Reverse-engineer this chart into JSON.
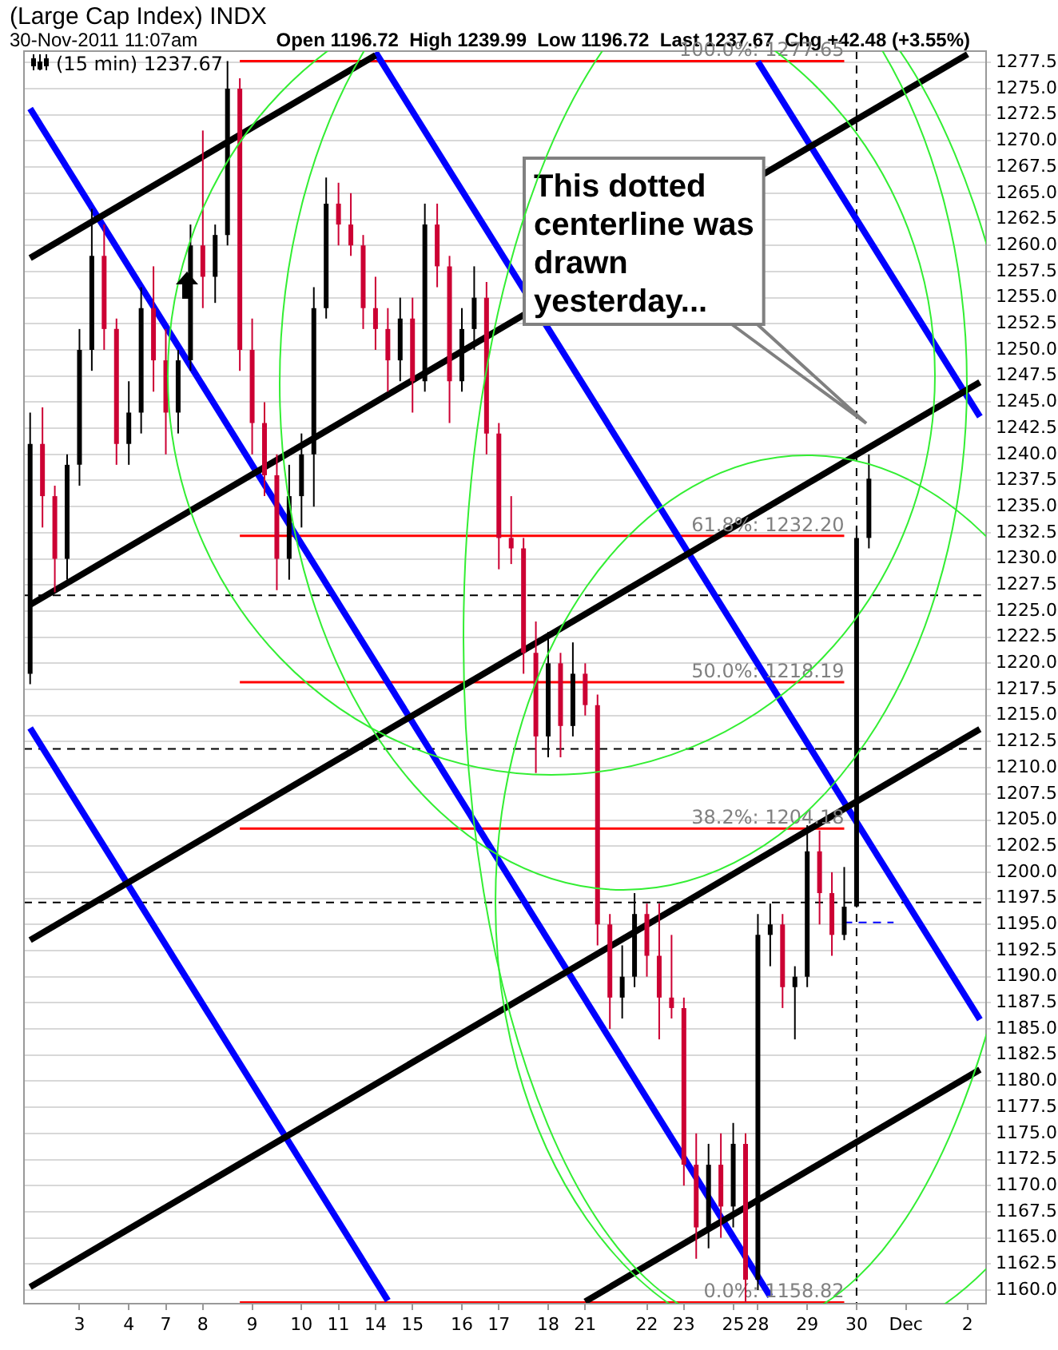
{
  "chart_data": {
    "type": "candlestick",
    "title": "(Large Cap Index) INDX",
    "subtitle": "30-Nov-2011 11:07am",
    "annotations": [
      "Open 1196.72  High 1239.99  Low 1196.72  Last 1237.67  Chg +42.48 (+3.55%)",
      {
        "text": "100.0%: 1277.65",
        "y": 1277.65
      },
      {
        "text": "61.8%: 1232.20",
        "y": 1232.2
      },
      {
        "text": "50.0%: 1218.19",
        "y": 1218.19
      },
      {
        "text": "38.2%: 1204.18",
        "y": 1204.18
      },
      {
        "text": "0.0%: 1158.82",
        "y": 1158.82
      },
      "This dotted centerline was drawn yesterday..."
    ],
    "categories": [
      null,
      null,
      null,
      null,
      "3",
      null,
      null,
      null,
      "4",
      null,
      null,
      "7",
      null,
      null,
      "8",
      null,
      null,
      null,
      "9",
      null,
      null,
      null,
      "10",
      null,
      null,
      "11",
      null,
      null,
      "14",
      null,
      null,
      "15",
      null,
      null,
      null,
      "16",
      null,
      null,
      "17",
      null,
      null,
      null,
      "18",
      null,
      null,
      "21",
      null,
      null,
      null,
      null,
      "22",
      null,
      null,
      "23",
      null,
      null,
      null,
      "25",
      null,
      "28",
      null,
      null,
      null,
      "29",
      null,
      null,
      null,
      "30",
      null,
      null,
      null,
      "Dec",
      null,
      null,
      null,
      null,
      "2",
      null
    ],
    "series": [
      {
        "type": "candlestick",
        "name": "(15 min) 1237.67",
        "color": "#000000",
        "ohlc": [
          [
            1219,
            1244,
            1218,
            1241
          ],
          [
            1241,
            1244.5,
            1233,
            1236
          ],
          [
            1236,
            1237,
            1226.8,
            1230
          ],
          [
            1230,
            1240,
            1228,
            1239
          ],
          [
            1239,
            1252,
            1237,
            1250
          ],
          [
            1250,
            1263.5,
            1248,
            1259
          ],
          [
            1259,
            1262,
            1250,
            1252
          ],
          [
            1252,
            1253,
            1239,
            1241
          ],
          [
            1241,
            1247,
            1239,
            1244
          ],
          [
            1244,
            1256,
            1242,
            1254
          ],
          [
            1254,
            1258,
            1246,
            1249
          ],
          [
            1249,
            1252,
            1240,
            1244
          ],
          [
            1244,
            1250,
            1242,
            1249
          ],
          [
            1249,
            1262,
            1248,
            1260
          ],
          [
            1260,
            1271,
            1254,
            1257
          ],
          [
            1257,
            1262,
            1254.5,
            1261
          ],
          [
            1261,
            1277.65,
            1260,
            1275
          ],
          [
            1275,
            1276,
            1248,
            1250
          ],
          [
            1250,
            1253,
            1240,
            1243
          ],
          [
            1243,
            1245,
            1236,
            1238
          ],
          [
            1238,
            1240,
            1227,
            1230
          ],
          [
            1230,
            1239,
            1228,
            1236
          ],
          [
            1236,
            1242,
            1233,
            1240
          ],
          [
            1240,
            1256,
            1235,
            1254
          ],
          [
            1254,
            1266.5,
            1253,
            1264
          ],
          [
            1264,
            1266,
            1260,
            1262
          ],
          [
            1262,
            1265,
            1259,
            1260
          ],
          [
            1260,
            1261,
            1252,
            1254
          ],
          [
            1254,
            1257,
            1250,
            1252
          ],
          [
            1252,
            1254,
            1246,
            1249
          ],
          [
            1249,
            1255,
            1247,
            1253
          ],
          [
            1253,
            1255,
            1244,
            1247
          ],
          [
            1247,
            1264,
            1246,
            1262
          ],
          [
            1262,
            1264,
            1256,
            1258
          ],
          [
            1258,
            1259,
            1243,
            1247
          ],
          [
            1247,
            1254,
            1246,
            1252
          ],
          [
            1252,
            1258,
            1250,
            1255
          ],
          [
            1255,
            1256.5,
            1240,
            1242
          ],
          [
            1242,
            1243,
            1229,
            1232
          ],
          [
            1232,
            1236,
            1229.5,
            1231
          ],
          [
            1231,
            1232,
            1219,
            1221
          ],
          [
            1221,
            1224,
            1209.5,
            1213
          ],
          [
            1213,
            1223,
            1211,
            1220
          ],
          [
            1220,
            1221,
            1211,
            1214
          ],
          [
            1214,
            1222,
            1213,
            1219
          ],
          [
            1219,
            1220,
            1215,
            1216
          ],
          [
            1216,
            1217,
            1193,
            1195
          ],
          [
            1195,
            1196,
            1185,
            1188
          ],
          [
            1188,
            1193,
            1186,
            1190
          ],
          [
            1190,
            1198,
            1189,
            1196
          ],
          [
            1196,
            1197,
            1190,
            1192
          ],
          [
            1192,
            1197,
            1184,
            1188
          ],
          [
            1188,
            1194,
            1186,
            1187
          ],
          [
            1187,
            1188,
            1170,
            1172
          ],
          [
            1172,
            1175,
            1163,
            1166
          ],
          [
            1166,
            1174,
            1164,
            1172
          ],
          [
            1172,
            1175,
            1165,
            1168
          ],
          [
            1168,
            1176,
            1166,
            1174
          ],
          [
            1174,
            1175,
            1158.82,
            1161
          ],
          [
            1161,
            1196,
            1160,
            1194
          ],
          [
            1194,
            1197,
            1191,
            1195
          ],
          [
            1195,
            1196,
            1187,
            1189
          ],
          [
            1189,
            1191,
            1184,
            1190
          ],
          [
            1190,
            1204.5,
            1189,
            1202
          ],
          [
            1202,
            1204,
            1195,
            1198
          ],
          [
            1198,
            1200,
            1192,
            1194
          ],
          [
            1194,
            1200.5,
            1193.5,
            1196.7
          ],
          [
            1196.72,
            1233,
            1196.72,
            1232
          ],
          [
            1232,
            1239.99,
            1231,
            1237.67
          ],
          null,
          null,
          null,
          null,
          null,
          null,
          null,
          null,
          null
        ],
        "colors": [
          "#000000",
          "#cc0033",
          "#cc0033",
          "#000000",
          "#000000",
          "#000000",
          "#cc0033",
          "#cc0033",
          "#000000",
          "#000000",
          "#cc0033",
          "#cc0033",
          "#000000",
          "#000000",
          "#cc0033",
          "#000000",
          "#000000",
          "#cc0033",
          "#cc0033",
          "#cc0033",
          "#cc0033",
          "#000000",
          "#000000",
          "#000000",
          "#000000",
          "#cc0033",
          "#cc0033",
          "#cc0033",
          "#cc0033",
          "#cc0033",
          "#000000",
          "#cc0033",
          "#000000",
          "#cc0033",
          "#cc0033",
          "#000000",
          "#000000",
          "#cc0033",
          "#cc0033",
          "#cc0033",
          "#cc0033",
          "#cc0033",
          "#000000",
          "#cc0033",
          "#000000",
          "#cc0033",
          "#cc0033",
          "#cc0033",
          "#000000",
          "#000000",
          "#cc0033",
          "#cc0033",
          "#cc0033",
          "#cc0033",
          "#cc0033",
          "#000000",
          "#cc0033",
          "#000000",
          "#cc0033",
          "#000000",
          "#000000",
          "#cc0033",
          "#000000",
          "#000000",
          "#cc0033",
          "#cc0033",
          "#000000",
          "#000000",
          "#000000",
          null,
          null,
          null,
          null,
          null,
          null,
          null,
          null,
          null
        ]
      },
      {
        "type": "line",
        "color": "#000000",
        "values": [
          1258.8,
          null,
          null,
          null,
          null,
          null,
          null,
          null,
          null,
          null,
          null,
          null,
          null,
          null,
          null,
          null,
          null,
          null,
          null,
          null,
          null,
          null,
          null,
          null,
          null,
          null,
          null,
          null,
          1278.2,
          null,
          null,
          null,
          null,
          null,
          null,
          null,
          null,
          null,
          null,
          null,
          null,
          null,
          null,
          null,
          null,
          null,
          null,
          null,
          null,
          null,
          null,
          null,
          null,
          null,
          null,
          null,
          null,
          null,
          null,
          null,
          null,
          null,
          null,
          null,
          null,
          null,
          null,
          null,
          null,
          null,
          null,
          null,
          null,
          null,
          null,
          null,
          null,
          null
        ]
      },
      {
        "type": "line",
        "color": "#000000",
        "values": [
          1225.6,
          null,
          null,
          null,
          null,
          null,
          null,
          null,
          null,
          null,
          null,
          null,
          null,
          null,
          null,
          null,
          null,
          null,
          null,
          null,
          null,
          null,
          null,
          null,
          null,
          null,
          null,
          null,
          null,
          null,
          null,
          null,
          null,
          null,
          null,
          null,
          null,
          null,
          null,
          null,
          null,
          null,
          null,
          null,
          null,
          null,
          null,
          null,
          null,
          null,
          null,
          null,
          null,
          null,
          null,
          null,
          null,
          null,
          null,
          null,
          null,
          null,
          null,
          null,
          null,
          null,
          null,
          null,
          null,
          null,
          null,
          null,
          null,
          null,
          null,
          null,
          1278.3,
          null
        ]
      },
      {
        "type": "line",
        "color": "#000000",
        "values": [
          1193.5,
          null,
          null,
          null,
          null,
          null,
          null,
          null,
          null,
          null,
          null,
          null,
          null,
          null,
          null,
          null,
          null,
          null,
          null,
          null,
          null,
          null,
          null,
          null,
          null,
          null,
          null,
          null,
          null,
          null,
          null,
          null,
          null,
          null,
          null,
          null,
          null,
          null,
          null,
          null,
          null,
          null,
          null,
          null,
          null,
          null,
          null,
          null,
          null,
          null,
          null,
          null,
          null,
          null,
          null,
          null,
          null,
          null,
          null,
          null,
          null,
          null,
          null,
          null,
          null,
          null,
          null,
          null,
          null,
          null,
          null,
          null,
          null,
          null,
          null,
          null,
          null,
          1246.9
        ]
      },
      {
        "type": "line",
        "color": "#000000",
        "values": [
          1160.3,
          null,
          null,
          null,
          null,
          null,
          null,
          null,
          null,
          null,
          null,
          null,
          null,
          null,
          null,
          null,
          null,
          null,
          null,
          null,
          null,
          null,
          null,
          null,
          null,
          null,
          null,
          null,
          null,
          null,
          null,
          null,
          null,
          null,
          null,
          null,
          null,
          null,
          null,
          null,
          null,
          null,
          null,
          null,
          null,
          null,
          null,
          null,
          null,
          null,
          null,
          null,
          null,
          null,
          null,
          null,
          null,
          null,
          null,
          null,
          null,
          null,
          null,
          null,
          null,
          null,
          null,
          null,
          null,
          null,
          null,
          null,
          null,
          null,
          null,
          null,
          null,
          1213.7
        ]
      },
      {
        "type": "line",
        "color": "#000000",
        "values": [
          null,
          null,
          null,
          null,
          null,
          null,
          null,
          null,
          null,
          null,
          null,
          null,
          null,
          null,
          null,
          null,
          null,
          null,
          null,
          null,
          null,
          null,
          null,
          null,
          null,
          null,
          null,
          null,
          null,
          null,
          null,
          null,
          null,
          null,
          null,
          null,
          null,
          null,
          null,
          null,
          null,
          null,
          null,
          null,
          null,
          1158.9,
          null,
          null,
          null,
          null,
          null,
          null,
          null,
          null,
          null,
          null,
          null,
          null,
          null,
          null,
          null,
          null,
          null,
          null,
          null,
          null,
          null,
          null,
          null,
          null,
          null,
          null,
          null,
          null,
          null,
          null,
          null,
          1181.1
        ]
      },
      {
        "type": "line",
        "color": "#0000ff",
        "values": [
          1213.8,
          null,
          null,
          null,
          null,
          null,
          null,
          null,
          null,
          null,
          null,
          null,
          null,
          null,
          null,
          null,
          null,
          null,
          null,
          null,
          null,
          null,
          null,
          null,
          null,
          null,
          null,
          null,
          null,
          1159.0,
          null,
          null,
          null,
          null,
          null,
          null,
          null,
          null,
          null,
          null,
          null,
          null,
          null,
          null,
          null,
          null,
          null,
          null,
          null,
          null,
          null,
          null,
          null,
          null,
          null,
          null,
          null,
          null,
          null,
          null,
          null,
          null,
          null,
          null,
          null,
          null,
          null,
          null,
          null,
          null,
          null,
          null,
          null,
          null,
          null,
          null,
          null,
          null
        ]
      },
      {
        "type": "line",
        "color": "#0000ff",
        "values": [
          1273.1,
          null,
          null,
          null,
          null,
          null,
          null,
          null,
          null,
          null,
          null,
          null,
          null,
          null,
          null,
          null,
          null,
          null,
          null,
          null,
          null,
          null,
          null,
          null,
          null,
          null,
          null,
          null,
          null,
          null,
          null,
          null,
          null,
          null,
          null,
          null,
          null,
          null,
          null,
          null,
          null,
          null,
          null,
          null,
          null,
          null,
          null,
          null,
          null,
          null,
          null,
          null,
          null,
          null,
          null,
          null,
          null,
          null,
          null,
          null,
          1159.4,
          null,
          null,
          null,
          null,
          null,
          null,
          null,
          null,
          null,
          null,
          null,
          null,
          null,
          null,
          null,
          null,
          null
        ]
      },
      {
        "type": "line",
        "color": "#0000ff",
        "values": [
          null,
          null,
          null,
          null,
          null,
          null,
          null,
          null,
          null,
          null,
          null,
          null,
          null,
          null,
          null,
          null,
          null,
          null,
          null,
          null,
          null,
          null,
          null,
          null,
          null,
          null,
          null,
          null,
          1278.5,
          null,
          null,
          null,
          null,
          null,
          null,
          null,
          null,
          null,
          null,
          null,
          null,
          null,
          null,
          null,
          null,
          null,
          null,
          null,
          null,
          null,
          null,
          null,
          null,
          null,
          null,
          null,
          null,
          null,
          null,
          null,
          null,
          null,
          null,
          null,
          null,
          null,
          null,
          null,
          null,
          null,
          null,
          null,
          null,
          null,
          null,
          null,
          null,
          1185.9
        ]
      },
      {
        "type": "line",
        "color": "#0000ff",
        "values": [
          null,
          null,
          null,
          null,
          null,
          null,
          null,
          null,
          null,
          null,
          null,
          null,
          null,
          null,
          null,
          null,
          null,
          null,
          null,
          null,
          null,
          null,
          null,
          null,
          null,
          null,
          null,
          null,
          null,
          null,
          null,
          null,
          null,
          null,
          null,
          null,
          null,
          null,
          null,
          null,
          null,
          null,
          null,
          null,
          null,
          null,
          null,
          null,
          null,
          null,
          null,
          null,
          null,
          null,
          null,
          null,
          null,
          null,
          null,
          1277.6,
          null,
          null,
          null,
          null,
          null,
          null,
          null,
          null,
          null,
          null,
          null,
          null,
          null,
          null,
          null,
          null,
          null,
          1243.6
        ]
      },
      {
        "type": "line",
        "color": "#ff0000",
        "values": [
          null,
          null,
          null,
          null,
          null,
          null,
          null,
          null,
          null,
          null,
          null,
          null,
          null,
          null,
          null,
          null,
          null,
          1277.65,
          null,
          null,
          null,
          null,
          null,
          null,
          null,
          null,
          null,
          null,
          null,
          null,
          null,
          null,
          null,
          null,
          null,
          null,
          null,
          null,
          null,
          null,
          null,
          null,
          null,
          null,
          null,
          null,
          null,
          null,
          null,
          null,
          null,
          null,
          null,
          null,
          null,
          null,
          null,
          null,
          null,
          null,
          null,
          null,
          null,
          null,
          null,
          null,
          1277.65,
          null,
          null,
          null,
          null,
          null,
          null,
          null,
          null,
          null,
          null,
          null
        ]
      },
      {
        "type": "line",
        "color": "#ff0000",
        "values": [
          null,
          null,
          null,
          null,
          null,
          null,
          null,
          null,
          null,
          null,
          null,
          null,
          null,
          null,
          null,
          null,
          null,
          1232.2,
          null,
          null,
          null,
          null,
          null,
          null,
          null,
          null,
          null,
          null,
          null,
          null,
          null,
          null,
          null,
          null,
          null,
          null,
          null,
          null,
          null,
          null,
          null,
          null,
          null,
          null,
          null,
          null,
          null,
          null,
          null,
          null,
          null,
          null,
          null,
          null,
          null,
          null,
          null,
          null,
          null,
          null,
          null,
          null,
          null,
          null,
          null,
          null,
          1232.2,
          null,
          null,
          null,
          null,
          null,
          null,
          null,
          null,
          null,
          null,
          null
        ]
      },
      {
        "type": "line",
        "color": "#ff0000",
        "values": [
          null,
          null,
          null,
          null,
          null,
          null,
          null,
          null,
          null,
          null,
          null,
          null,
          null,
          null,
          null,
          null,
          null,
          1218.19,
          null,
          null,
          null,
          null,
          null,
          null,
          null,
          null,
          null,
          null,
          null,
          null,
          null,
          null,
          null,
          null,
          null,
          null,
          null,
          null,
          null,
          null,
          null,
          null,
          null,
          null,
          null,
          null,
          null,
          null,
          null,
          null,
          null,
          null,
          null,
          null,
          null,
          null,
          null,
          null,
          null,
          null,
          null,
          null,
          null,
          null,
          null,
          null,
          1218.19,
          null,
          null,
          null,
          null,
          null,
          null,
          null,
          null,
          null,
          null,
          null
        ]
      },
      {
        "type": "line",
        "color": "#ff0000",
        "values": [
          null,
          null,
          null,
          null,
          null,
          null,
          null,
          null,
          null,
          null,
          null,
          null,
          null,
          null,
          null,
          null,
          null,
          1204.18,
          null,
          null,
          null,
          null,
          null,
          null,
          null,
          null,
          null,
          null,
          null,
          null,
          null,
          null,
          null,
          null,
          null,
          null,
          null,
          null,
          null,
          null,
          null,
          null,
          null,
          null,
          null,
          null,
          null,
          null,
          null,
          null,
          null,
          null,
          null,
          null,
          null,
          null,
          null,
          null,
          null,
          null,
          null,
          null,
          null,
          null,
          null,
          null,
          1204.18,
          null,
          null,
          null,
          null,
          null,
          null,
          null,
          null,
          null,
          null,
          null
        ]
      },
      {
        "type": "line",
        "color": "#ff0000",
        "values": [
          null,
          null,
          null,
          null,
          null,
          null,
          null,
          null,
          null,
          null,
          null,
          null,
          null,
          null,
          null,
          null,
          null,
          1158.82,
          null,
          null,
          null,
          null,
          null,
          null,
          null,
          null,
          null,
          null,
          null,
          null,
          null,
          null,
          null,
          null,
          null,
          null,
          null,
          null,
          null,
          null,
          null,
          null,
          null,
          null,
          null,
          null,
          null,
          null,
          null,
          null,
          null,
          null,
          null,
          null,
          null,
          null,
          null,
          null,
          null,
          null,
          null,
          null,
          null,
          null,
          null,
          null,
          1158.82,
          null,
          null,
          null,
          null,
          null,
          null,
          null,
          null,
          null,
          null,
          null
        ]
      },
      {
        "type": "line",
        "color": "#0000ff",
        "line_style": "dashed",
        "values": [
          null,
          null,
          null,
          null,
          null,
          null,
          null,
          null,
          null,
          null,
          null,
          null,
          null,
          null,
          null,
          null,
          null,
          null,
          null,
          null,
          null,
          null,
          null,
          null,
          null,
          null,
          null,
          null,
          null,
          null,
          null,
          null,
          null,
          null,
          null,
          null,
          null,
          null,
          null,
          null,
          null,
          null,
          null,
          null,
          null,
          null,
          null,
          null,
          null,
          null,
          null,
          null,
          null,
          null,
          null,
          null,
          null,
          null,
          null,
          null,
          null,
          null,
          null,
          null,
          null,
          null,
          1195.2,
          null,
          null,
          null,
          1195.2,
          null,
          null,
          null,
          null,
          null,
          null,
          null
        ]
      }
    ],
    "ref_lines": [
      {
        "axis": "y",
        "value": 1226.5,
        "color": "#000000",
        "line_style": "dashed"
      },
      {
        "axis": "y",
        "value": 1211.8,
        "color": "#000000",
        "line_style": "dashed"
      },
      {
        "axis": "y",
        "value": 1197.1,
        "color": "#000000",
        "line_style": "dashed"
      },
      {
        "axis": "x",
        "value": "30",
        "color": "#000000",
        "line_style": "dashed"
      }
    ],
    "ylim": [
      1158.7,
      1278.6
    ],
    "yticks": [
      {
        "value": 1160,
        "label": "1160.0"
      },
      {
        "value": 1162.5,
        "label": "1162.5"
      },
      {
        "value": 1165,
        "label": "1165.0"
      },
      {
        "value": 1167.5,
        "label": "1167.5"
      },
      {
        "value": 1170,
        "label": "1170.0"
      },
      {
        "value": 1172.5,
        "label": "1172.5"
      },
      {
        "value": 1175,
        "label": "1175.0"
      },
      {
        "value": 1177.5,
        "label": "1177.5"
      },
      {
        "value": 1180,
        "label": "1180.0"
      },
      {
        "value": 1182.5,
        "label": "1182.5"
      },
      {
        "value": 1185,
        "label": "1185.0"
      },
      {
        "value": 1187.5,
        "label": "1187.5"
      },
      {
        "value": 1190,
        "label": "1190.0"
      },
      {
        "value": 1192.5,
        "label": "1192.5"
      },
      {
        "value": 1195,
        "label": "1195.0"
      },
      {
        "value": 1197.5,
        "label": "1197.5"
      },
      {
        "value": 1200,
        "label": "1200.0"
      },
      {
        "value": 1202.5,
        "label": "1202.5"
      },
      {
        "value": 1205,
        "label": "1205.0"
      },
      {
        "value": 1207.5,
        "label": "1207.5"
      },
      {
        "value": 1210,
        "label": "1210.0"
      },
      {
        "value": 1212.5,
        "label": "1212.5"
      },
      {
        "value": 1215,
        "label": "1215.0"
      },
      {
        "value": 1217.5,
        "label": "1217.5"
      },
      {
        "value": 1220,
        "label": "1220.0"
      },
      {
        "value": 1222.5,
        "label": "1222.5"
      },
      {
        "value": 1225,
        "label": "1225.0"
      },
      {
        "value": 1227.5,
        "label": "1227.5"
      },
      {
        "value": 1230,
        "label": "1230.0"
      },
      {
        "value": 1232.5,
        "label": "1232.5"
      },
      {
        "value": 1235,
        "label": "1235.0"
      },
      {
        "value": 1237.5,
        "label": "1237.5"
      },
      {
        "value": 1240,
        "label": "1240.0"
      },
      {
        "value": 1242.5,
        "label": "1242.5"
      },
      {
        "value": 1245,
        "label": "1245.0"
      },
      {
        "value": 1247.5,
        "label": "1247.5"
      },
      {
        "value": 1250,
        "label": "1250.0"
      },
      {
        "value": 1252.5,
        "label": "1252.5"
      },
      {
        "value": 1255,
        "label": "1255.0"
      },
      {
        "value": 1257.5,
        "label": "1257.5"
      },
      {
        "value": 1260,
        "label": "1260.0"
      },
      {
        "value": 1262.5,
        "label": "1262.5"
      },
      {
        "value": 1265,
        "label": "1265.0"
      },
      {
        "value": 1267.5,
        "label": "1267.5"
      },
      {
        "value": 1270,
        "label": "1270.0"
      },
      {
        "value": 1272.5,
        "label": "1272.5"
      },
      {
        "value": 1275,
        "label": "1275.0"
      },
      {
        "value": 1277.5,
        "label": "1277.5"
      }
    ],
    "grid": "y",
    "legend": "top left"
  }
}
